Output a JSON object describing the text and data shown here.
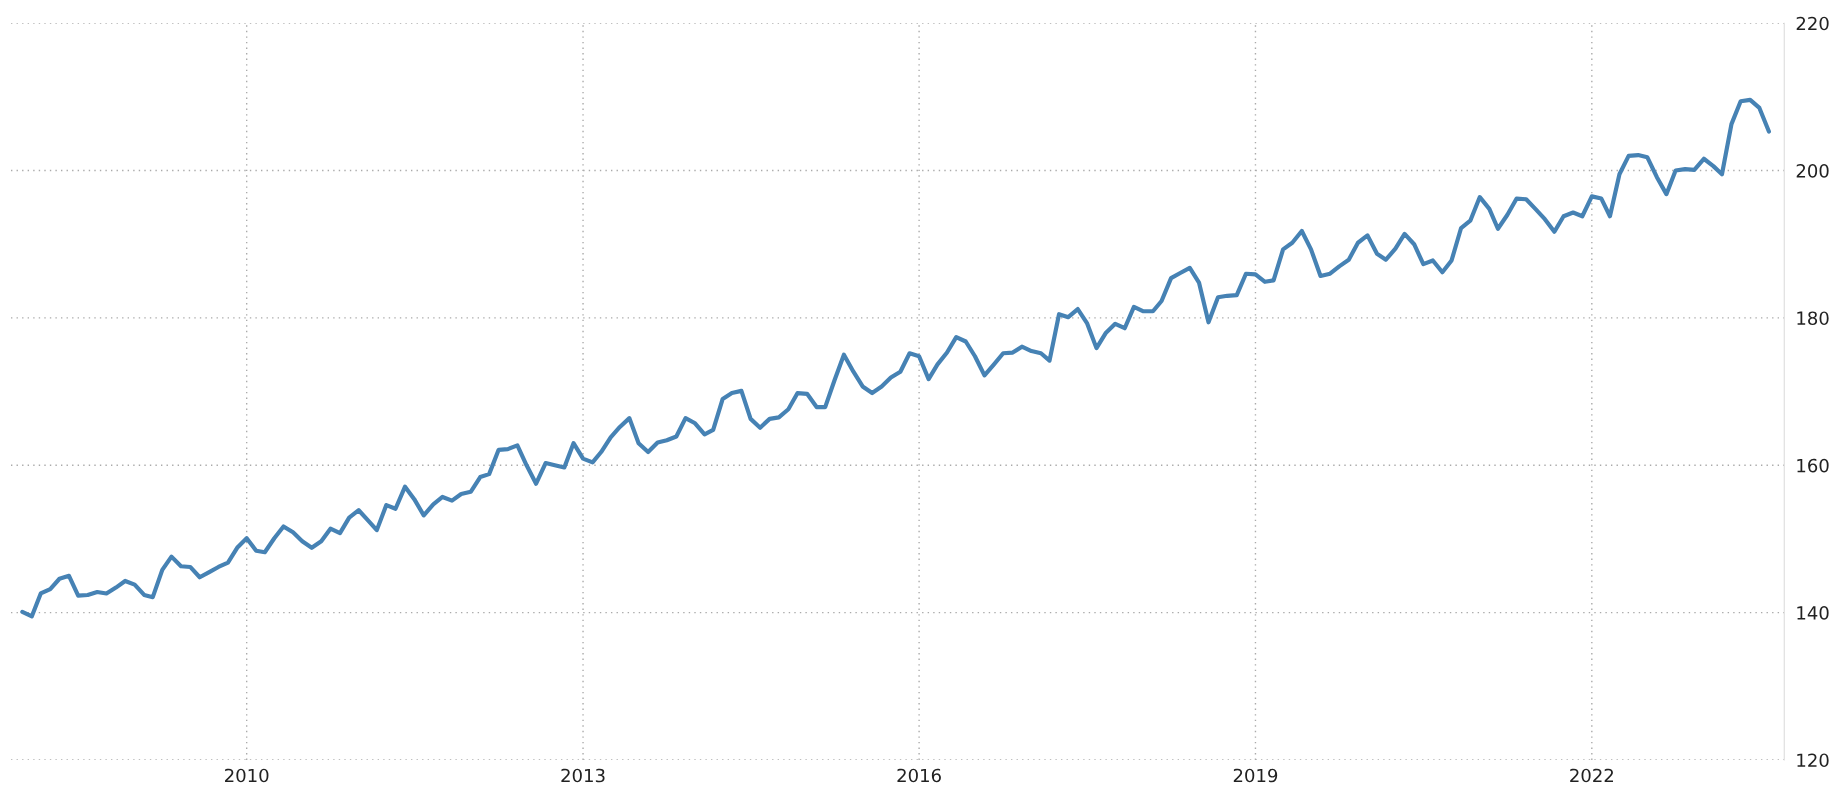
{
  "chart_data": {
    "type": "line",
    "x": [
      "2008-01",
      "2008-02",
      "2008-03",
      "2008-04",
      "2008-05",
      "2008-06",
      "2008-07",
      "2008-08",
      "2008-09",
      "2008-10",
      "2008-11",
      "2008-12",
      "2009-01",
      "2009-02",
      "2009-03",
      "2009-04",
      "2009-05",
      "2009-06",
      "2009-07",
      "2009-08",
      "2009-09",
      "2009-10",
      "2009-11",
      "2009-12",
      "2010-01",
      "2010-02",
      "2010-03",
      "2010-04",
      "2010-05",
      "2010-06",
      "2010-07",
      "2010-08",
      "2010-09",
      "2010-10",
      "2010-11",
      "2010-12",
      "2011-01",
      "2011-02",
      "2011-03",
      "2011-04",
      "2011-05",
      "2011-06",
      "2011-07",
      "2011-08",
      "2011-09",
      "2011-10",
      "2011-11",
      "2011-12",
      "2012-01",
      "2012-02",
      "2012-03",
      "2012-04",
      "2012-05",
      "2012-06",
      "2012-07",
      "2012-08",
      "2012-09",
      "2012-10",
      "2012-11",
      "2012-12",
      "2013-01",
      "2013-02",
      "2013-03",
      "2013-04",
      "2013-05",
      "2013-06",
      "2013-07",
      "2013-08",
      "2013-09",
      "2013-10",
      "2013-11",
      "2013-12",
      "2014-01",
      "2014-02",
      "2014-03",
      "2014-04",
      "2014-05",
      "2014-06",
      "2014-07",
      "2014-08",
      "2014-09",
      "2014-10",
      "2014-11",
      "2014-12",
      "2015-01",
      "2015-02",
      "2015-03",
      "2015-04",
      "2015-05",
      "2015-06",
      "2015-07",
      "2015-08",
      "2015-09",
      "2015-10",
      "2015-11",
      "2015-12",
      "2016-01",
      "2016-02",
      "2016-03",
      "2016-04",
      "2016-05",
      "2016-06",
      "2016-07",
      "2016-08",
      "2016-09",
      "2016-10",
      "2016-11",
      "2016-12",
      "2017-01",
      "2017-02",
      "2017-03",
      "2017-04",
      "2017-05",
      "2017-06",
      "2017-07",
      "2017-08",
      "2017-09",
      "2017-10",
      "2017-11",
      "2017-12",
      "2018-01",
      "2018-02",
      "2018-03",
      "2018-04",
      "2018-05",
      "2018-06",
      "2018-07",
      "2018-08",
      "2018-09",
      "2018-10",
      "2018-11",
      "2018-12",
      "2019-01",
      "2019-02",
      "2019-03",
      "2019-04",
      "2019-05",
      "2019-06",
      "2019-07",
      "2019-08",
      "2019-09",
      "2019-10",
      "2019-11",
      "2019-12",
      "2020-01",
      "2020-02",
      "2020-03",
      "2020-04",
      "2020-05",
      "2020-06",
      "2020-07",
      "2020-08",
      "2020-09",
      "2020-10",
      "2020-11",
      "2020-12",
      "2021-01",
      "2021-02",
      "2021-03",
      "2021-04",
      "2021-05",
      "2021-06",
      "2021-07",
      "2021-08",
      "2021-09",
      "2021-10",
      "2021-11",
      "2021-12",
      "2022-01",
      "2022-02",
      "2022-03",
      "2022-04",
      "2022-05",
      "2022-06",
      "2022-07",
      "2022-08",
      "2022-09",
      "2022-10",
      "2022-11",
      "2022-12",
      "2023-01",
      "2023-02",
      "2023-03",
      "2023-04",
      "2023-05",
      "2023-06",
      "2023-07",
      "2023-08"
    ],
    "series": [
      {
        "color": "#4682b4",
        "values": [
          140.1,
          139.5,
          142.6,
          143.2,
          144.6,
          145.0,
          142.3,
          142.4,
          142.8,
          142.6,
          143.4,
          144.3,
          143.8,
          142.4,
          142.1,
          145.8,
          147.6,
          146.3,
          146.2,
          144.8,
          145.5,
          146.2,
          146.8,
          148.8,
          150.1,
          148.4,
          148.2,
          150.1,
          151.7,
          150.9,
          149.7,
          148.8,
          149.7,
          151.4,
          150.8,
          152.9,
          153.9,
          152.5,
          151.2,
          154.6,
          154.1,
          157.1,
          155.4,
          153.2,
          154.7,
          155.7,
          155.2,
          156.1,
          156.4,
          158.4,
          158.8,
          162.1,
          162.2,
          162.7,
          160.0,
          157.5,
          160.3,
          160.0,
          159.7,
          163.0,
          160.9,
          160.4,
          161.8,
          163.8,
          165.2,
          166.4,
          163.0,
          161.8,
          163.1,
          163.4,
          163.9,
          166.4,
          165.7,
          164.2,
          164.8,
          169.0,
          169.8,
          170.1,
          166.3,
          165.1,
          166.3,
          166.5,
          167.6,
          169.8,
          169.7,
          167.9,
          167.9,
          171.6,
          175.0,
          172.7,
          170.7,
          169.8,
          170.7,
          171.9,
          172.7,
          175.2,
          174.8,
          171.7,
          173.7,
          175.3,
          177.4,
          176.8,
          174.8,
          172.2,
          173.7,
          175.2,
          175.3,
          176.1,
          175.5,
          175.2,
          174.2,
          180.5,
          180.1,
          181.2,
          179.3,
          175.9,
          178.0,
          179.2,
          178.6,
          181.5,
          180.9,
          180.9,
          182.3,
          185.4,
          186.1,
          186.8,
          184.8,
          179.4,
          182.8,
          183.0,
          183.1,
          186.0,
          185.9,
          184.9,
          185.1,
          189.3,
          190.2,
          191.8,
          189.3,
          185.7,
          186.0,
          187.0,
          187.9,
          190.2,
          191.2,
          188.7,
          187.9,
          189.4,
          191.4,
          190.0,
          187.3,
          187.8,
          186.2,
          187.8,
          192.2,
          193.2,
          196.4,
          194.8,
          192.1,
          194.0,
          196.2,
          196.1,
          194.8,
          193.4,
          191.7,
          193.8,
          194.3,
          193.8,
          196.5,
          196.2,
          193.8,
          199.5,
          202.0,
          202.1,
          201.8,
          199.1,
          196.8,
          200.0,
          200.2,
          200.1,
          201.6,
          200.6,
          199.5,
          206.3,
          209.4,
          209.6,
          208.5,
          205.3
        ]
      }
    ],
    "xlim": [
      "2007-11-25",
      "2023-09-20"
    ],
    "xticks": [
      {
        "value": "2010",
        "label": "2010"
      },
      {
        "value": "2013",
        "label": "2013"
      },
      {
        "value": "2016",
        "label": "2016"
      },
      {
        "value": "2019",
        "label": "2019"
      },
      {
        "value": "2022",
        "label": "2022"
      }
    ],
    "ylim": [
      120,
      220
    ],
    "yticks": [
      120,
      140,
      160,
      180,
      200,
      220
    ],
    "grid": true,
    "marker": "none",
    "line_style": "solid"
  }
}
